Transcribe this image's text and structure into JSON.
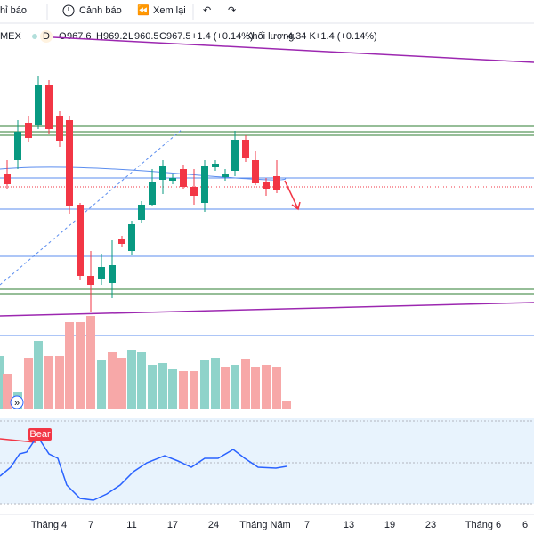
{
  "toolbar": {
    "indicators": "hỉ báo",
    "alerts": "Cảnh báo",
    "replay": "Xem lại"
  },
  "legend": {
    "symbol": "MEX",
    "badge": "D",
    "open_label": "O",
    "open": "967.6",
    "high_label": "H",
    "high": "969.2",
    "low_label": "L",
    "low": "960.5",
    "close_label": "C",
    "close": "967.5",
    "change": "+1.4 (+0.14%)",
    "volume_label": "Khối lượng",
    "volume": "4.34 K",
    "volume_change": "+1.4 (+0.14%)"
  },
  "indicator_label": "Bear",
  "x_axis": [
    "Tháng 4",
    "7",
    "11",
    "17",
    "24",
    "Tháng Năm",
    "7",
    "13",
    "19",
    "23",
    "Tháng 6",
    "6"
  ]
}
